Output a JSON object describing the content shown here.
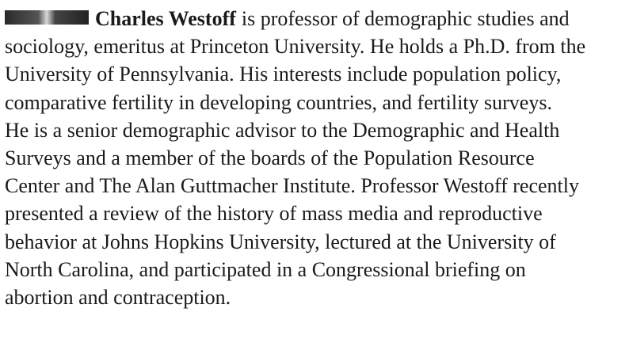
{
  "bio": {
    "name": "Charles Westoff",
    "lines": [
      "is professor of demographic studies and",
      "sociology, emeritus at Princeton University. He holds a Ph.D. from the",
      "University of Pennsylvania. His interests include population policy,",
      "comparative fertility in developing countries, and fertility surveys.",
      "He is a senior demographic advisor to the Demographic and Health",
      "Surveys and a member of the boards of the Population Resource",
      "Center and The Alan Guttmacher Institute. Professor Westoff recently",
      "presented a review of the history of mass media and reproductive",
      "behavior at Johns Hopkins University, lectured at the University of",
      "North Carolina, and participated in a Congressional briefing on",
      "abortion and contraception."
    ]
  }
}
